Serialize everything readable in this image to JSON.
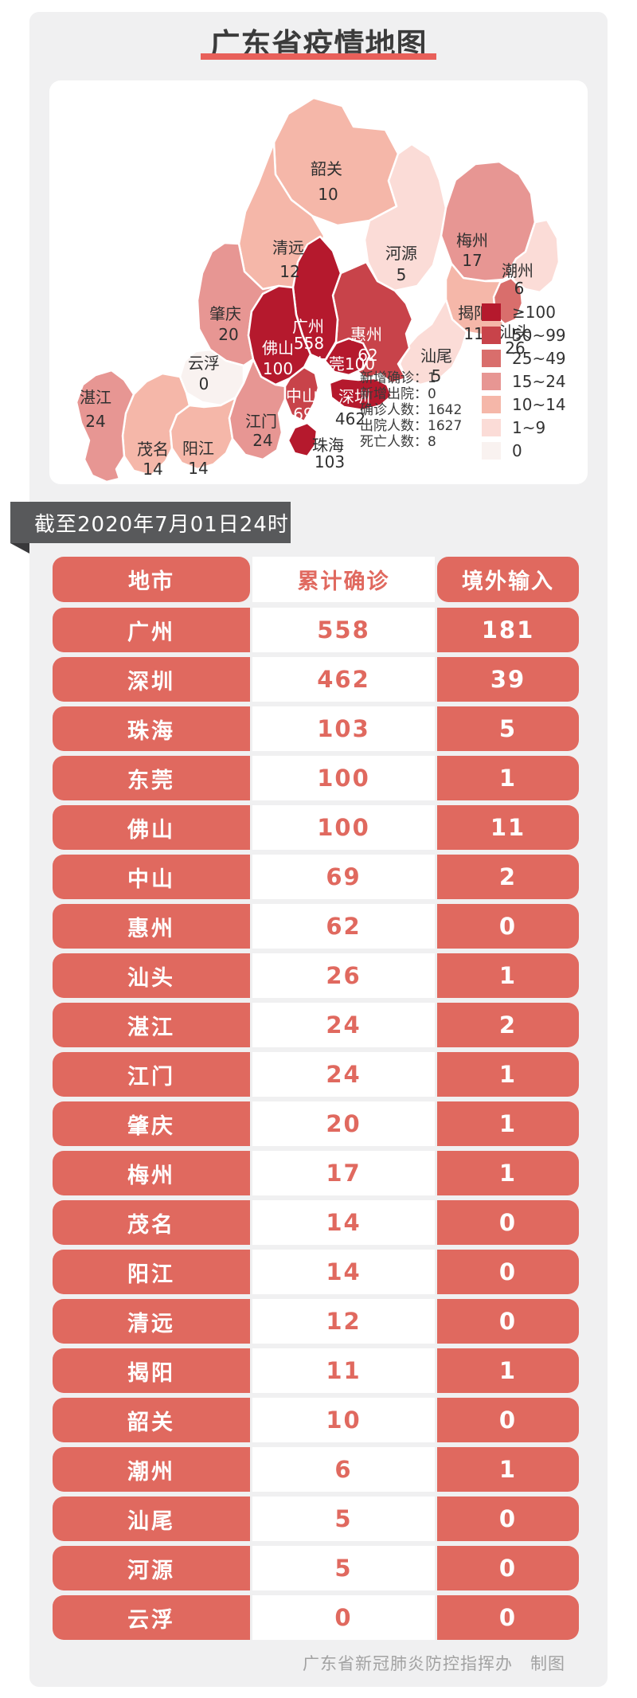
{
  "title": {
    "text": "广东省疫情地图"
  },
  "map": {
    "cities": [
      {
        "name": "韶关",
        "value": "10"
      },
      {
        "name": "清远",
        "value": "12"
      },
      {
        "name": "河源",
        "value": "5"
      },
      {
        "name": "梅州",
        "value": "17"
      },
      {
        "name": "潮州",
        "value": "6"
      },
      {
        "name": "揭阳",
        "value": "11"
      },
      {
        "name": "汕头",
        "value": "26"
      },
      {
        "name": "汕尾",
        "value": "5"
      },
      {
        "name": "惠州",
        "value": "62"
      },
      {
        "name": "广州",
        "value": "558"
      },
      {
        "name": "佛山",
        "value": "100"
      },
      {
        "name": "东莞",
        "value": "100"
      },
      {
        "name": "深圳",
        "value": "462"
      },
      {
        "name": "中山",
        "value": "69"
      },
      {
        "name": "珠海",
        "value": "103"
      },
      {
        "name": "江门",
        "value": "24"
      },
      {
        "name": "肇庆",
        "value": "20"
      },
      {
        "name": "云浮",
        "value": "0"
      },
      {
        "name": "茂名",
        "value": "14"
      },
      {
        "name": "阳江",
        "value": "14"
      },
      {
        "name": "湛江",
        "value": "24"
      }
    ],
    "stats_lines": [
      "新增确诊：1",
      "新增出院：0",
      "确诊人数：1642",
      "出院人数：1627",
      "死亡人数：8"
    ],
    "legend": [
      {
        "label": "≥100",
        "color": "#b5192d"
      },
      {
        "label": "50~99",
        "color": "#c8434a"
      },
      {
        "label": "25~49",
        "color": "#d96e6c"
      },
      {
        "label": "15~24",
        "color": "#e79693"
      },
      {
        "label": "10~14",
        "color": "#f5b7a9"
      },
      {
        "label": "1~9",
        "color": "#fbdcd7"
      },
      {
        "label": "0",
        "color": "#f9f2f0"
      }
    ]
  },
  "banner": {
    "text": "截至2020年7月01日24时"
  },
  "table": {
    "headers": [
      "地市",
      "累计确诊",
      "境外输入"
    ],
    "rows": [
      {
        "city": "广州",
        "confirmed": "558",
        "imported": "181"
      },
      {
        "city": "深圳",
        "confirmed": "462",
        "imported": "39"
      },
      {
        "city": "珠海",
        "confirmed": "103",
        "imported": "5"
      },
      {
        "city": "东莞",
        "confirmed": "100",
        "imported": "1"
      },
      {
        "city": "佛山",
        "confirmed": "100",
        "imported": "11"
      },
      {
        "city": "中山",
        "confirmed": "69",
        "imported": "2"
      },
      {
        "city": "惠州",
        "confirmed": "62",
        "imported": "0"
      },
      {
        "city": "汕头",
        "confirmed": "26",
        "imported": "1"
      },
      {
        "city": "湛江",
        "confirmed": "24",
        "imported": "2"
      },
      {
        "city": "江门",
        "confirmed": "24",
        "imported": "1"
      },
      {
        "city": "肇庆",
        "confirmed": "20",
        "imported": "1"
      },
      {
        "city": "梅州",
        "confirmed": "17",
        "imported": "1"
      },
      {
        "city": "茂名",
        "confirmed": "14",
        "imported": "0"
      },
      {
        "city": "阳江",
        "confirmed": "14",
        "imported": "0"
      },
      {
        "city": "清远",
        "confirmed": "12",
        "imported": "0"
      },
      {
        "city": "揭阳",
        "confirmed": "11",
        "imported": "1"
      },
      {
        "city": "韶关",
        "confirmed": "10",
        "imported": "0"
      },
      {
        "city": "潮州",
        "confirmed": "6",
        "imported": "1"
      },
      {
        "city": "汕尾",
        "confirmed": "5",
        "imported": "0"
      },
      {
        "city": "河源",
        "confirmed": "5",
        "imported": "0"
      },
      {
        "city": "云浮",
        "confirmed": "0",
        "imported": "0"
      }
    ]
  },
  "footer": {
    "text": "广东省新冠肺炎防控指挥办　制图"
  },
  "chart_data": {
    "type": "table",
    "title": "广东省疫情地图",
    "as_of": "截至2020年7月01日24时",
    "legend_buckets": [
      "≥100",
      "50~99",
      "25~49",
      "15~24",
      "10~14",
      "1~9",
      "0"
    ],
    "province_stats": {
      "新增确诊": 1,
      "新增出院": 0,
      "确诊人数": 1642,
      "出院人数": 1627,
      "死亡人数": 8
    },
    "columns": [
      "地市",
      "累计确诊",
      "境外输入"
    ],
    "rows": [
      [
        "广州",
        558,
        181
      ],
      [
        "深圳",
        462,
        39
      ],
      [
        "珠海",
        103,
        5
      ],
      [
        "东莞",
        100,
        1
      ],
      [
        "佛山",
        100,
        11
      ],
      [
        "中山",
        69,
        2
      ],
      [
        "惠州",
        62,
        0
      ],
      [
        "汕头",
        26,
        1
      ],
      [
        "湛江",
        24,
        2
      ],
      [
        "江门",
        24,
        1
      ],
      [
        "肇庆",
        20,
        1
      ],
      [
        "梅州",
        17,
        1
      ],
      [
        "茂名",
        14,
        0
      ],
      [
        "阳江",
        14,
        0
      ],
      [
        "清远",
        12,
        0
      ],
      [
        "揭阳",
        11,
        1
      ],
      [
        "韶关",
        10,
        0
      ],
      [
        "潮州",
        6,
        1
      ],
      [
        "汕尾",
        5,
        0
      ],
      [
        "河源",
        5,
        0
      ],
      [
        "云浮",
        0,
        0
      ]
    ]
  }
}
